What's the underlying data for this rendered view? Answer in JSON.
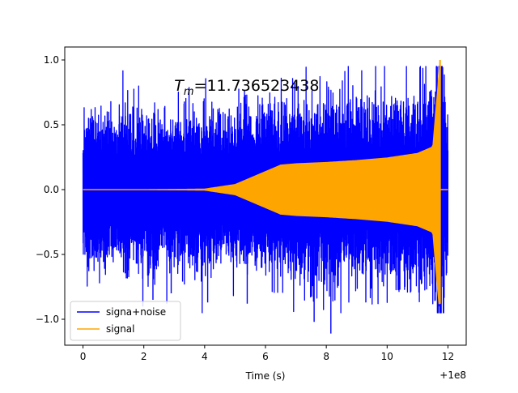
{
  "chart_data": {
    "type": "line",
    "title": "",
    "annotation": {
      "symbol": "T",
      "subscript": "m",
      "value_text": "=11.736523438",
      "x": 3.0,
      "y": 0.8
    },
    "xlabel": "Time (s)",
    "ylabel": "",
    "x_offset_label": "+1e8",
    "xlim": [
      -0.6,
      12.6
    ],
    "ylim": [
      -1.2,
      1.1
    ],
    "xticks": [
      0,
      2,
      4,
      6,
      8,
      10,
      12
    ],
    "yticks": [
      -1.0,
      -0.5,
      0.0,
      0.5,
      1.0
    ],
    "xtick_labels": [
      "0",
      "2",
      "4",
      "6",
      "8",
      "10",
      "12"
    ],
    "ytick_labels": [
      "−1.0",
      "−0.5",
      "0.0",
      "0.5",
      "1.0"
    ],
    "grid": false,
    "legend_position": "lower-left",
    "series": [
      {
        "name": "signa+noise",
        "color": "#0000ff",
        "x_range": [
          0,
          12.0
        ],
        "noise_peaks_x": [
          2.3,
          2.9,
          4.1,
          5.4,
          7.6,
          8.15,
          9.3,
          11.3
        ],
        "noise_peaks_y": [
          -0.85,
          -0.8,
          -0.87,
          -0.88,
          -1.02,
          -1.11,
          -0.87,
          -0.77
        ],
        "envelope_x": [
          0,
          2,
          4,
          5,
          6,
          6.5,
          7,
          8,
          9,
          10,
          11,
          11.5,
          11.74,
          12.0
        ],
        "envelope_y": [
          0.0,
          0.0,
          0.005,
          0.04,
          0.14,
          0.19,
          0.2,
          0.21,
          0.225,
          0.245,
          0.28,
          0.33,
          1.0,
          0.0
        ]
      },
      {
        "name": "signal",
        "color": "#ffa500",
        "x_range": [
          0,
          11.74
        ],
        "envelope_x": [
          0,
          2,
          4,
          5,
          6,
          6.5,
          7,
          8,
          9,
          10,
          11,
          11.5,
          11.74
        ],
        "envelope_y": [
          0.0,
          0.0,
          0.005,
          0.04,
          0.14,
          0.19,
          0.2,
          0.21,
          0.225,
          0.245,
          0.28,
          0.33,
          1.0
        ],
        "peak_x": 11.74,
        "peak_y": 1.0,
        "trough_y": -0.88
      }
    ]
  }
}
